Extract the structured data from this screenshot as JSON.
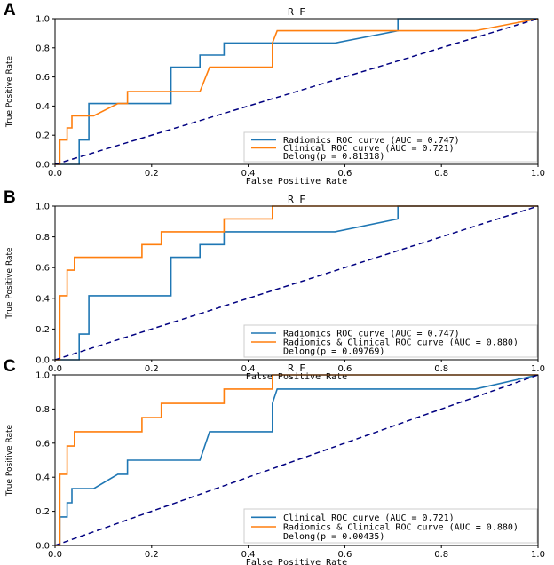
{
  "chart_data": [
    {
      "panel": "A",
      "type": "line",
      "title": "R F",
      "xlabel": "False Positive Rate",
      "ylabel": "True Positive Rate",
      "xlim": [
        0,
        1
      ],
      "ylim": [
        0,
        1
      ],
      "ticks": [
        "0.0",
        "0.2",
        "0.4",
        "0.6",
        "0.8",
        "1.0"
      ],
      "legend_position": "lower-right",
      "delong_text": "Delong(p = 0.81318)",
      "series": [
        {
          "name": "Radiomics ROC curve (AUC = 0.747)",
          "color": "#1f77b4",
          "x": [
            0,
            0.05,
            0.05,
            0.07,
            0.07,
            0.24,
            0.24,
            0.3,
            0.3,
            0.35,
            0.35,
            0.58,
            0.71,
            0.71,
            1.0
          ],
          "y": [
            0,
            0,
            0.167,
            0.167,
            0.417,
            0.417,
            0.667,
            0.667,
            0.75,
            0.75,
            0.833,
            0.833,
            0.917,
            1.0,
            1.0
          ]
        },
        {
          "name": "Clinical ROC curve (AUC = 0.721)",
          "color": "#ff7f0e",
          "x": [
            0,
            0.01,
            0.01,
            0.025,
            0.025,
            0.035,
            0.035,
            0.08,
            0.13,
            0.15,
            0.15,
            0.22,
            0.3,
            0.32,
            0.45,
            0.45,
            0.46,
            0.87,
            1.0
          ],
          "y": [
            0,
            0,
            0.167,
            0.167,
            0.25,
            0.25,
            0.333,
            0.333,
            0.417,
            0.417,
            0.5,
            0.5,
            0.5,
            0.667,
            0.667,
            0.833,
            0.917,
            0.917,
            1.0
          ]
        },
        {
          "name": "chance",
          "color": "#000080",
          "x": [
            0,
            1
          ],
          "y": [
            0,
            1
          ]
        }
      ]
    },
    {
      "panel": "B",
      "type": "line",
      "title": "R F",
      "xlabel": "False Positive Rate",
      "ylabel": "True Positive Rate",
      "xlim": [
        0,
        1
      ],
      "ylim": [
        0,
        1
      ],
      "ticks": [
        "0.0",
        "0.2",
        "0.4",
        "0.6",
        "0.8",
        "1.0"
      ],
      "legend_position": "lower-right",
      "delong_text": "Delong(p = 0.09769)",
      "series": [
        {
          "name": "Radiomics ROC curve (AUC = 0.747)",
          "color": "#1f77b4",
          "x": [
            0,
            0.05,
            0.05,
            0.07,
            0.07,
            0.24,
            0.24,
            0.3,
            0.3,
            0.35,
            0.35,
            0.58,
            0.71,
            0.71,
            1.0
          ],
          "y": [
            0,
            0,
            0.167,
            0.167,
            0.417,
            0.417,
            0.667,
            0.667,
            0.75,
            0.75,
            0.833,
            0.833,
            0.917,
            1.0,
            1.0
          ]
        },
        {
          "name": "Radiomics & Clinical ROC curve (AUC = 0.880)",
          "color": "#ff7f0e",
          "x": [
            0,
            0.01,
            0.01,
            0.025,
            0.025,
            0.04,
            0.04,
            0.18,
            0.18,
            0.22,
            0.22,
            0.35,
            0.35,
            0.45,
            0.45,
            1.0
          ],
          "y": [
            0,
            0,
            0.417,
            0.417,
            0.583,
            0.583,
            0.667,
            0.667,
            0.75,
            0.75,
            0.833,
            0.833,
            0.917,
            0.917,
            1.0,
            1.0
          ]
        },
        {
          "name": "chance",
          "color": "#000080",
          "x": [
            0,
            1
          ],
          "y": [
            0,
            1
          ]
        }
      ]
    },
    {
      "panel": "C",
      "type": "line",
      "title": "R F",
      "xlabel": "False Positive Rate",
      "ylabel": "True Positive Rate",
      "xlim": [
        0,
        1
      ],
      "ylim": [
        0,
        1
      ],
      "ticks": [
        "0.0",
        "0.2",
        "0.4",
        "0.6",
        "0.8",
        "1.0"
      ],
      "legend_position": "lower-right",
      "delong_text": "Delong(p = 0.00435)",
      "series": [
        {
          "name": "Clinical ROC curve (AUC = 0.721)",
          "color": "#1f77b4",
          "x": [
            0,
            0.01,
            0.01,
            0.025,
            0.025,
            0.035,
            0.035,
            0.08,
            0.13,
            0.15,
            0.15,
            0.22,
            0.3,
            0.32,
            0.45,
            0.45,
            0.46,
            0.87,
            1.0
          ],
          "y": [
            0,
            0,
            0.167,
            0.167,
            0.25,
            0.25,
            0.333,
            0.333,
            0.417,
            0.417,
            0.5,
            0.5,
            0.5,
            0.667,
            0.667,
            0.833,
            0.917,
            0.917,
            1.0
          ]
        },
        {
          "name": "Radiomics & Clinical ROC curve (AUC = 0.880)",
          "color": "#ff7f0e",
          "x": [
            0,
            0.01,
            0.01,
            0.025,
            0.025,
            0.04,
            0.04,
            0.18,
            0.18,
            0.22,
            0.22,
            0.35,
            0.35,
            0.45,
            0.45,
            1.0
          ],
          "y": [
            0,
            0,
            0.417,
            0.417,
            0.583,
            0.583,
            0.667,
            0.667,
            0.75,
            0.75,
            0.833,
            0.833,
            0.917,
            0.917,
            1.0,
            1.0
          ]
        },
        {
          "name": "chance",
          "color": "#000080",
          "x": [
            0,
            1
          ],
          "y": [
            0,
            1
          ]
        }
      ]
    }
  ]
}
